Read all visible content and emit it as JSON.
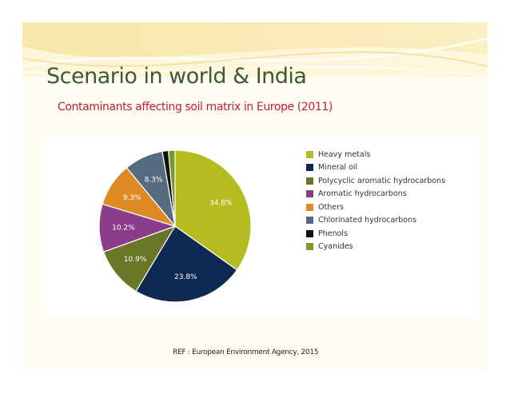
{
  "slide": {
    "title": "Scenario in world & India",
    "subtitle": "Contaminants affecting soil matrix  in Europe (2011)",
    "reference": "REF :  European Environment Agency, 2015"
  },
  "chart_data": {
    "type": "pie",
    "title": "",
    "legend_position": "right",
    "slices": [
      {
        "name": "Heavy metals",
        "value": 34.8,
        "label": "34.8%",
        "color": "#b4bc1f"
      },
      {
        "name": "Mineral oil",
        "value": 23.8,
        "label": "23.8%",
        "color": "#0f2a52"
      },
      {
        "name": "Polycyclic aromatic hydrocarbons",
        "value": 10.9,
        "label": "10.9%",
        "color": "#6b7526"
      },
      {
        "name": "Aromatic hydrocarbons",
        "value": 10.2,
        "label": "10.2%",
        "color": "#8b3c8b"
      },
      {
        "name": "Others",
        "value": 9.3,
        "label": "9.3%",
        "color": "#de8a24"
      },
      {
        "name": "Chlorinated hydrocarbons",
        "value": 8.3,
        "label": "8.3%",
        "color": "#566b80"
      },
      {
        "name": "Phenols",
        "value": 1.3,
        "label": "",
        "color": "#111111"
      },
      {
        "name": "Cyanides",
        "value": 1.4,
        "label": "",
        "color": "#7a9a2a"
      }
    ]
  }
}
